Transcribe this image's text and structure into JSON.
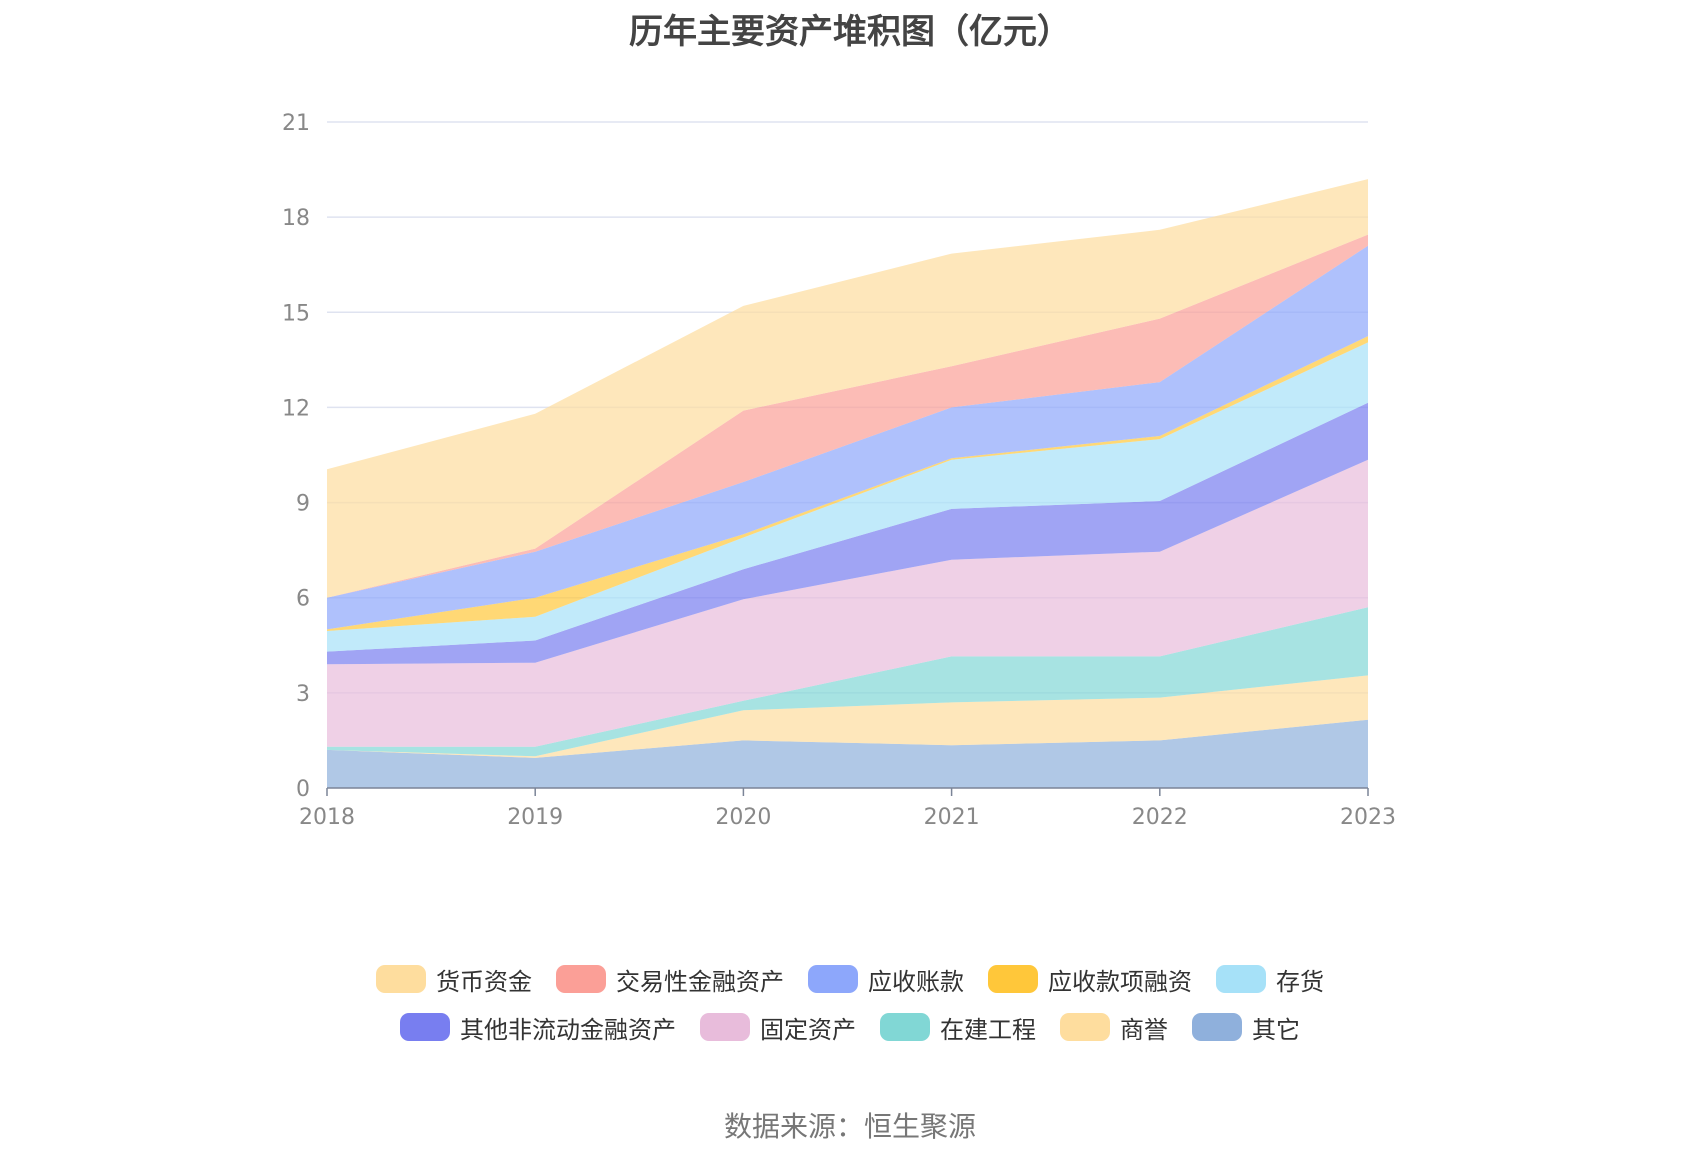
{
  "chart_data": {
    "type": "area",
    "stacked": true,
    "title": "历年主要资产堆积图（亿元）",
    "categories": [
      "2018",
      "2019",
      "2020",
      "2021",
      "2022",
      "2023"
    ],
    "y_ticks": [
      "0",
      "3",
      "6",
      "9",
      "12",
      "15",
      "18",
      "21"
    ],
    "ylim": [
      0,
      21
    ],
    "grid": true,
    "legend_position": "bottom",
    "source": "数据来源：恒生聚源",
    "series": [
      {
        "name": "其它",
        "color": "#8fb0dc",
        "values": [
          1.2,
          0.95,
          1.5,
          1.35,
          1.5,
          2.15
        ]
      },
      {
        "name": "商誉",
        "color": "#fedd9e",
        "values": [
          0.0,
          0.05,
          0.95,
          1.35,
          1.35,
          1.4
        ]
      },
      {
        "name": "在建工程",
        "color": "#81d7d5",
        "values": [
          0.1,
          0.3,
          0.3,
          1.45,
          1.3,
          2.15
        ]
      },
      {
        "name": "固定资产",
        "color": "#e8bcdb",
        "values": [
          2.6,
          2.65,
          3.2,
          3.05,
          3.3,
          4.65
        ]
      },
      {
        "name": "其他非流动金融资产",
        "color": "#787ef0",
        "values": [
          0.4,
          0.7,
          0.95,
          1.6,
          1.6,
          1.8
        ]
      },
      {
        "name": "存货",
        "color": "#a6e1f8",
        "values": [
          0.65,
          0.75,
          1.0,
          1.55,
          1.95,
          1.9
        ]
      },
      {
        "name": "应收款项融资",
        "color": "#ffc73a",
        "values": [
          0.05,
          0.6,
          0.1,
          0.05,
          0.1,
          0.2
        ]
      },
      {
        "name": "应收账款",
        "color": "#8da7fb",
        "values": [
          1.0,
          1.45,
          1.65,
          1.6,
          1.7,
          2.85
        ]
      },
      {
        "name": "交易性金融资产",
        "color": "#fb9f97",
        "values": [
          0.0,
          0.1,
          2.25,
          1.3,
          2.0,
          0.35
        ]
      },
      {
        "name": "货币资金",
        "color": "#fedd9e",
        "values": [
          4.05,
          4.25,
          3.3,
          3.55,
          2.8,
          1.75
        ]
      }
    ],
    "legend_rows": [
      [
        "货币资金",
        "交易性金融资产",
        "应收账款",
        "应收款项融资",
        "存货"
      ],
      [
        "其他非流动金融资产",
        "固定资产",
        "在建工程",
        "商誉",
        "其它"
      ]
    ]
  }
}
